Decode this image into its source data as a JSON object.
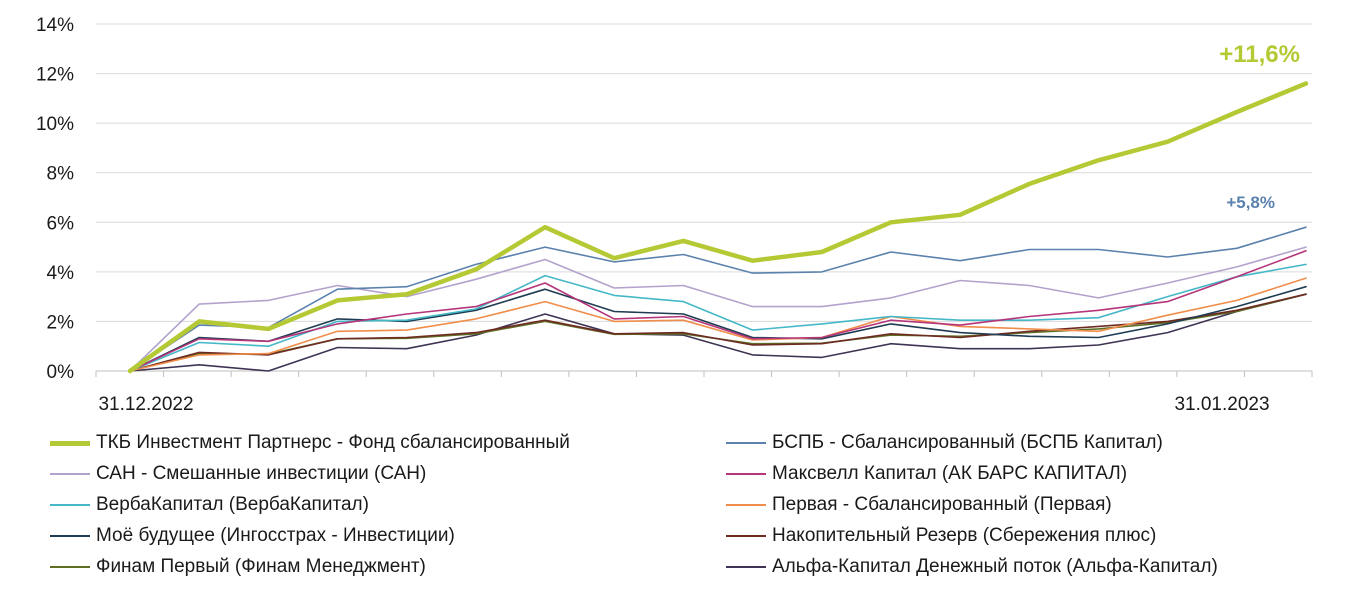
{
  "chart_data": {
    "type": "line",
    "x_axis": {
      "labels": [
        "31.12.2022",
        "31.01.2023"
      ]
    },
    "y_axis": {
      "min": 0,
      "max": 14,
      "step": 2,
      "tick_labels": [
        "0%",
        "2%",
        "4%",
        "6%",
        "8%",
        "10%",
        "12%",
        "14%"
      ]
    },
    "grid": "horizontal",
    "legend_placement": "bottom",
    "annotations": [
      {
        "text": "+11,6%",
        "series": "ТКБ Инвестмент Партнерс - Фонд сбалансированный",
        "color": "#b5c935"
      },
      {
        "text": "+5,8%",
        "series": "БСПБ - Сбалансированный (БСПБ Капитал)",
        "color": "#5b82ad"
      }
    ],
    "series": [
      {
        "name": "ТКБ Инвестмент Партнерс - Фонд сбалансированный",
        "color": "#b5c935",
        "highlight": true,
        "values": [
          0,
          2.0,
          1.7,
          2.85,
          3.1,
          4.1,
          5.8,
          4.55,
          5.25,
          4.45,
          4.8,
          6.0,
          6.3,
          7.55,
          8.5,
          9.25,
          10.45,
          11.6
        ]
      },
      {
        "name": "БСПБ - Сбалансированный (БСПБ Капитал)",
        "color": "#5b82ad",
        "values": [
          0,
          1.85,
          1.75,
          3.3,
          3.4,
          4.3,
          5.0,
          4.4,
          4.7,
          3.95,
          4.0,
          4.8,
          4.45,
          4.9,
          4.9,
          4.6,
          4.95,
          5.8
        ]
      },
      {
        "name": "САН - Смешанные инвестиции (САН)",
        "color": "#b3a2cc",
        "values": [
          0,
          2.7,
          2.85,
          3.45,
          3.0,
          3.7,
          4.5,
          3.35,
          3.45,
          2.6,
          2.6,
          2.95,
          3.65,
          3.45,
          2.95,
          3.55,
          4.2,
          5.0
        ]
      },
      {
        "name": "Максвелл Капитал (АК БАРС КАПИТАЛ)",
        "color": "#b5357a",
        "values": [
          0,
          1.3,
          1.2,
          1.9,
          2.3,
          2.6,
          3.55,
          2.1,
          2.2,
          1.3,
          1.35,
          2.05,
          1.85,
          2.2,
          2.45,
          2.8,
          3.8,
          4.85
        ]
      },
      {
        "name": "ВербаКапитал (ВербаКапитал)",
        "color": "#45b8c8",
        "values": [
          0,
          1.15,
          1.0,
          2.0,
          2.05,
          2.5,
          3.85,
          3.05,
          2.8,
          1.65,
          1.9,
          2.2,
          2.05,
          2.05,
          2.15,
          3.0,
          3.8,
          4.3
        ]
      },
      {
        "name": "Первая - Сбалансированный (Первая)",
        "color": "#f08d4a",
        "values": [
          0,
          0.65,
          0.7,
          1.6,
          1.65,
          2.1,
          2.8,
          2.0,
          2.05,
          1.25,
          1.35,
          2.2,
          1.8,
          1.7,
          1.6,
          2.25,
          2.85,
          3.75
        ]
      },
      {
        "name": "Моё будущее (Ингосстрах - Инвестиции)",
        "color": "#1f3c52",
        "values": [
          0,
          1.35,
          1.2,
          2.1,
          2.0,
          2.45,
          3.3,
          2.4,
          2.3,
          1.35,
          1.3,
          1.9,
          1.55,
          1.4,
          1.35,
          1.9,
          2.6,
          3.4
        ]
      },
      {
        "name": "Накопительный Резерв (Сбережения плюс)",
        "color": "#6e2b22",
        "values": [
          0,
          0.75,
          0.65,
          1.3,
          1.35,
          1.55,
          2.05,
          1.5,
          1.55,
          1.05,
          1.1,
          1.5,
          1.35,
          1.6,
          1.8,
          2.0,
          2.45,
          3.1
        ]
      },
      {
        "name": "Финам Первый (Финам Менеджмент)",
        "color": "#5e6e24",
        "values": [
          0,
          0.7,
          0.68,
          1.3,
          1.32,
          1.5,
          2.0,
          1.48,
          1.5,
          1.1,
          1.12,
          1.45,
          1.4,
          1.55,
          1.7,
          1.95,
          2.4,
          3.1
        ]
      },
      {
        "name": "Альфа-Капитал Денежный поток (Альфа-Капитал)",
        "color": "#3f3454",
        "values": [
          0,
          0.25,
          0.0,
          0.95,
          0.9,
          1.45,
          2.3,
          1.5,
          1.45,
          0.65,
          0.55,
          1.1,
          0.9,
          0.9,
          1.05,
          1.55,
          2.4,
          3.1
        ]
      }
    ]
  }
}
